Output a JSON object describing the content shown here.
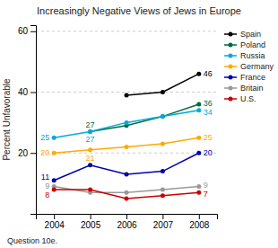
{
  "chart_data": {
    "type": "line",
    "title": "Increasingly Negative Views of Jews in Europe",
    "ylabel": "Percent Unfavorable",
    "footnote": "Question 10e.",
    "x": [
      2004,
      2005,
      2006,
      2007,
      2008
    ],
    "xlim": [
      2003.5,
      2008.5
    ],
    "xticks": [
      2004,
      2005,
      2006,
      2007,
      2008
    ],
    "ylim": [
      0,
      62
    ],
    "yticks": [
      20,
      40,
      60
    ],
    "grid": true,
    "legend": "right",
    "marker": "circle",
    "series": [
      {
        "name": "Spain",
        "color": "#000000",
        "values": [
          null,
          null,
          39,
          40,
          46
        ],
        "value_labels": [
          null,
          null,
          null,
          null,
          "46"
        ]
      },
      {
        "name": "Poland",
        "color": "#006b3c",
        "values": [
          null,
          27,
          29,
          32,
          36
        ],
        "value_labels": [
          null,
          "27",
          null,
          null,
          "36"
        ]
      },
      {
        "name": "Russia",
        "color": "#00aadd",
        "values": [
          25,
          27,
          30,
          32,
          34
        ],
        "value_labels": [
          "25",
          "27",
          null,
          null,
          "34"
        ]
      },
      {
        "name": "Germany",
        "color": "#ffaa00",
        "values": [
          20,
          21,
          22,
          23,
          25
        ],
        "value_labels": [
          "20",
          "21",
          null,
          null,
          "25"
        ]
      },
      {
        "name": "France",
        "color": "#0000aa",
        "values": [
          11,
          16,
          13,
          14,
          20
        ],
        "value_labels": [
          "11",
          null,
          null,
          null,
          "20"
        ]
      },
      {
        "name": "Britain",
        "color": "#999999",
        "values": [
          9,
          7,
          7,
          8,
          9
        ],
        "value_labels": [
          "9",
          null,
          null,
          null,
          "9"
        ]
      },
      {
        "name": "U.S.",
        "color": "#cc0000",
        "values": [
          8,
          8,
          5,
          6,
          7
        ],
        "value_labels": [
          "8",
          null,
          null,
          null,
          "7"
        ]
      }
    ]
  }
}
